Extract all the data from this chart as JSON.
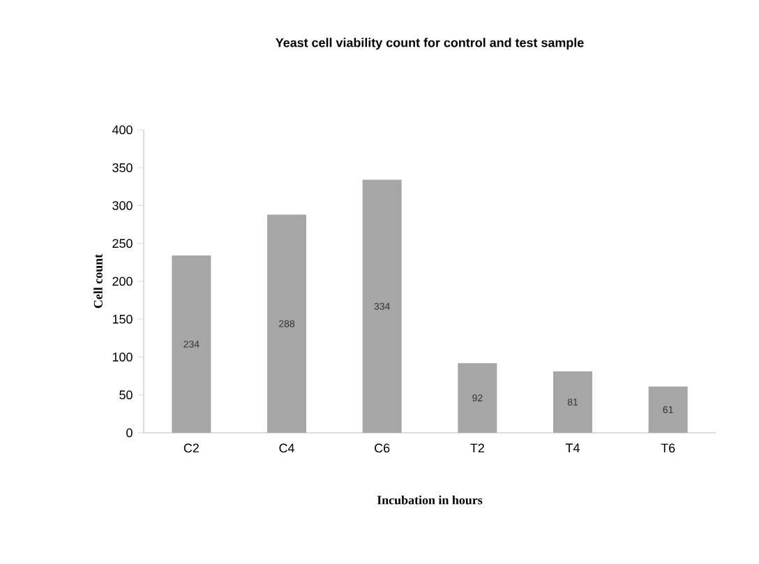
{
  "chart_data": {
    "type": "bar",
    "title": "Yeast cell viability count for control and test  sample",
    "xlabel": "Incubation in hours",
    "ylabel": "Cell count",
    "categories": [
      "C2",
      "C4",
      "C6",
      "T2",
      "T4",
      "T6"
    ],
    "values": [
      234,
      288,
      334,
      92,
      81,
      61
    ],
    "color": "#a6a6a6",
    "ylim": [
      0,
      400
    ],
    "yticks": [
      0,
      50,
      100,
      150,
      200,
      250,
      300,
      350,
      400
    ],
    "data_labels": true
  }
}
